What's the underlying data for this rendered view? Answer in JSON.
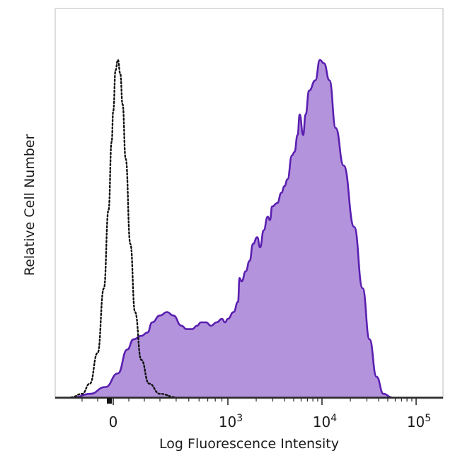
{
  "chart_data": {
    "type": "area",
    "xlabel": "Log Fluorescence Intensity",
    "ylabel": "Relative Cell Number",
    "x_scale": "biexponential",
    "x_ticks": [
      {
        "value": 0,
        "label": "0"
      },
      {
        "value": 1000,
        "base": "10",
        "exp": "3"
      },
      {
        "value": 10000,
        "base": "10",
        "exp": "4"
      },
      {
        "value": 100000,
        "base": "10",
        "exp": "5"
      }
    ],
    "ylim": [
      0,
      100
    ],
    "grid": false,
    "series": [
      {
        "role": "control",
        "style": "dotted-outline",
        "color": "#111111",
        "points": [
          [
            -270,
            0
          ],
          [
            -200,
            1
          ],
          [
            -150,
            4
          ],
          [
            -100,
            13
          ],
          [
            -60,
            32
          ],
          [
            -30,
            55
          ],
          [
            -10,
            75
          ],
          [
            0,
            84
          ],
          [
            15,
            96
          ],
          [
            30,
            99
          ],
          [
            45,
            95
          ],
          [
            60,
            86
          ],
          [
            80,
            70
          ],
          [
            110,
            45
          ],
          [
            140,
            25
          ],
          [
            180,
            11
          ],
          [
            230,
            4
          ],
          [
            300,
            1
          ],
          [
            400,
            0
          ]
        ]
      },
      {
        "role": "stained",
        "style": "filled",
        "fill": "#b393dc",
        "stroke": "#5a1fb0",
        "points": [
          [
            -250,
            0
          ],
          [
            -150,
            1
          ],
          [
            -50,
            3
          ],
          [
            30,
            7
          ],
          [
            90,
            14
          ],
          [
            130,
            17
          ],
          [
            180,
            18
          ],
          [
            220,
            19
          ],
          [
            250,
            22
          ],
          [
            300,
            24
          ],
          [
            340,
            25
          ],
          [
            380,
            24
          ],
          [
            440,
            21
          ],
          [
            480,
            20
          ],
          [
            530,
            20
          ],
          [
            580,
            21
          ],
          [
            620,
            22
          ],
          [
            680,
            22
          ],
          [
            740,
            21
          ],
          [
            820,
            22
          ],
          [
            900,
            23
          ],
          [
            950,
            22
          ],
          [
            1000,
            23
          ],
          [
            1150,
            25
          ],
          [
            1280,
            28
          ],
          [
            1330,
            35
          ],
          [
            1400,
            34
          ],
          [
            1550,
            37
          ],
          [
            1700,
            40
          ],
          [
            1850,
            45
          ],
          [
            2050,
            47
          ],
          [
            2200,
            44
          ],
          [
            2400,
            49
          ],
          [
            2650,
            53
          ],
          [
            2800,
            52
          ],
          [
            2950,
            56
          ],
          [
            3350,
            57
          ],
          [
            3700,
            60
          ],
          [
            4000,
            62
          ],
          [
            4300,
            64
          ],
          [
            4800,
            71
          ],
          [
            5100,
            72
          ],
          [
            5500,
            77
          ],
          [
            5800,
            83
          ],
          [
            6300,
            77
          ],
          [
            6700,
            83
          ],
          [
            7300,
            90
          ],
          [
            8500,
            93
          ],
          [
            9500,
            99
          ],
          [
            10500,
            98
          ],
          [
            12000,
            93
          ],
          [
            14000,
            79
          ],
          [
            17000,
            68
          ],
          [
            22000,
            50
          ],
          [
            27000,
            32
          ],
          [
            32000,
            17
          ],
          [
            38000,
            6
          ],
          [
            45000,
            1
          ],
          [
            55000,
            0
          ]
        ]
      }
    ]
  }
}
